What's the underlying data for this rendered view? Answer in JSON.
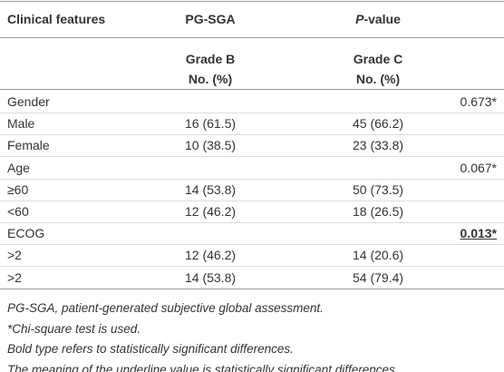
{
  "header": [
    {
      "text": "Clinical features"
    },
    {
      "text": "PG-SGA"
    },
    {
      "italic": "P",
      "text": "-value"
    }
  ],
  "subheader": [
    [
      "Grade B",
      "No. (%)"
    ],
    [
      "Grade C",
      "No. (%)"
    ]
  ],
  "rows": [
    [
      "Gender",
      "",
      "",
      "0.673*"
    ],
    [
      "Male",
      "16 (61.5)",
      "45 (66.2)",
      ""
    ],
    [
      "Female",
      "10 (38.5)",
      "23 (33.8)",
      ""
    ],
    [
      "Age",
      "",
      "",
      "0.067*"
    ],
    [
      "≥60",
      "14 (53.8)",
      "50 (73.5)",
      ""
    ],
    [
      "<60",
      "12 (46.2)",
      "18 (26.5)",
      ""
    ],
    [
      "ECOG",
      "",
      "",
      "0.013*"
    ],
    [
      ">2",
      "12 (46.2)",
      "14 (20.6)",
      ""
    ],
    [
      ">2",
      "14 (53.8)",
      "54 (79.4)",
      ""
    ]
  ],
  "emphasized_cell": [
    6,
    3
  ],
  "footnotes": [
    "PG-SGA, patient-generated subjective global assessment.",
    "*Chi-square test is used.",
    "Bold type refers to statistically significant differences.",
    "The meaning of the underline value is statistically significant differences."
  ]
}
